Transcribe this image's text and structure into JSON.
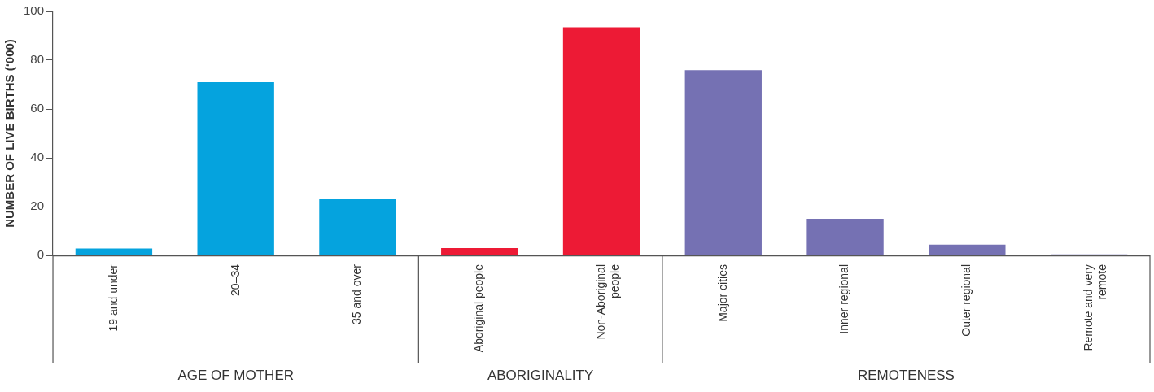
{
  "chart_data": {
    "type": "bar",
    "ylabel": "NUMBER OF LIVE BIRTHS (‘000)",
    "categories": [
      "19 and under",
      "20–34",
      "35 and over",
      "Aboriginal people",
      "Non-Aboriginal people",
      "Major cities",
      "Inner regional",
      "Outer regional",
      "Remote and very remote"
    ],
    "values": [
      2.8,
      71,
      23,
      3,
      93.5,
      75.9,
      15,
      4.4,
      0.4
    ],
    "colors": [
      "#05a3de",
      "#05a3de",
      "#05a3de",
      "#ed1a35",
      "#ed1a35",
      "#7571b3",
      "#7571b3",
      "#7571b3",
      "#7571b3"
    ],
    "annotations": [
      "AGE OF MOTHER",
      "ABORIGINALITY",
      "REMOTENESS"
    ],
    "ylim": [
      0,
      100
    ],
    "yticks": [
      0,
      20,
      40,
      60,
      80,
      100
    ],
    "grid": false,
    "legend": false
  }
}
